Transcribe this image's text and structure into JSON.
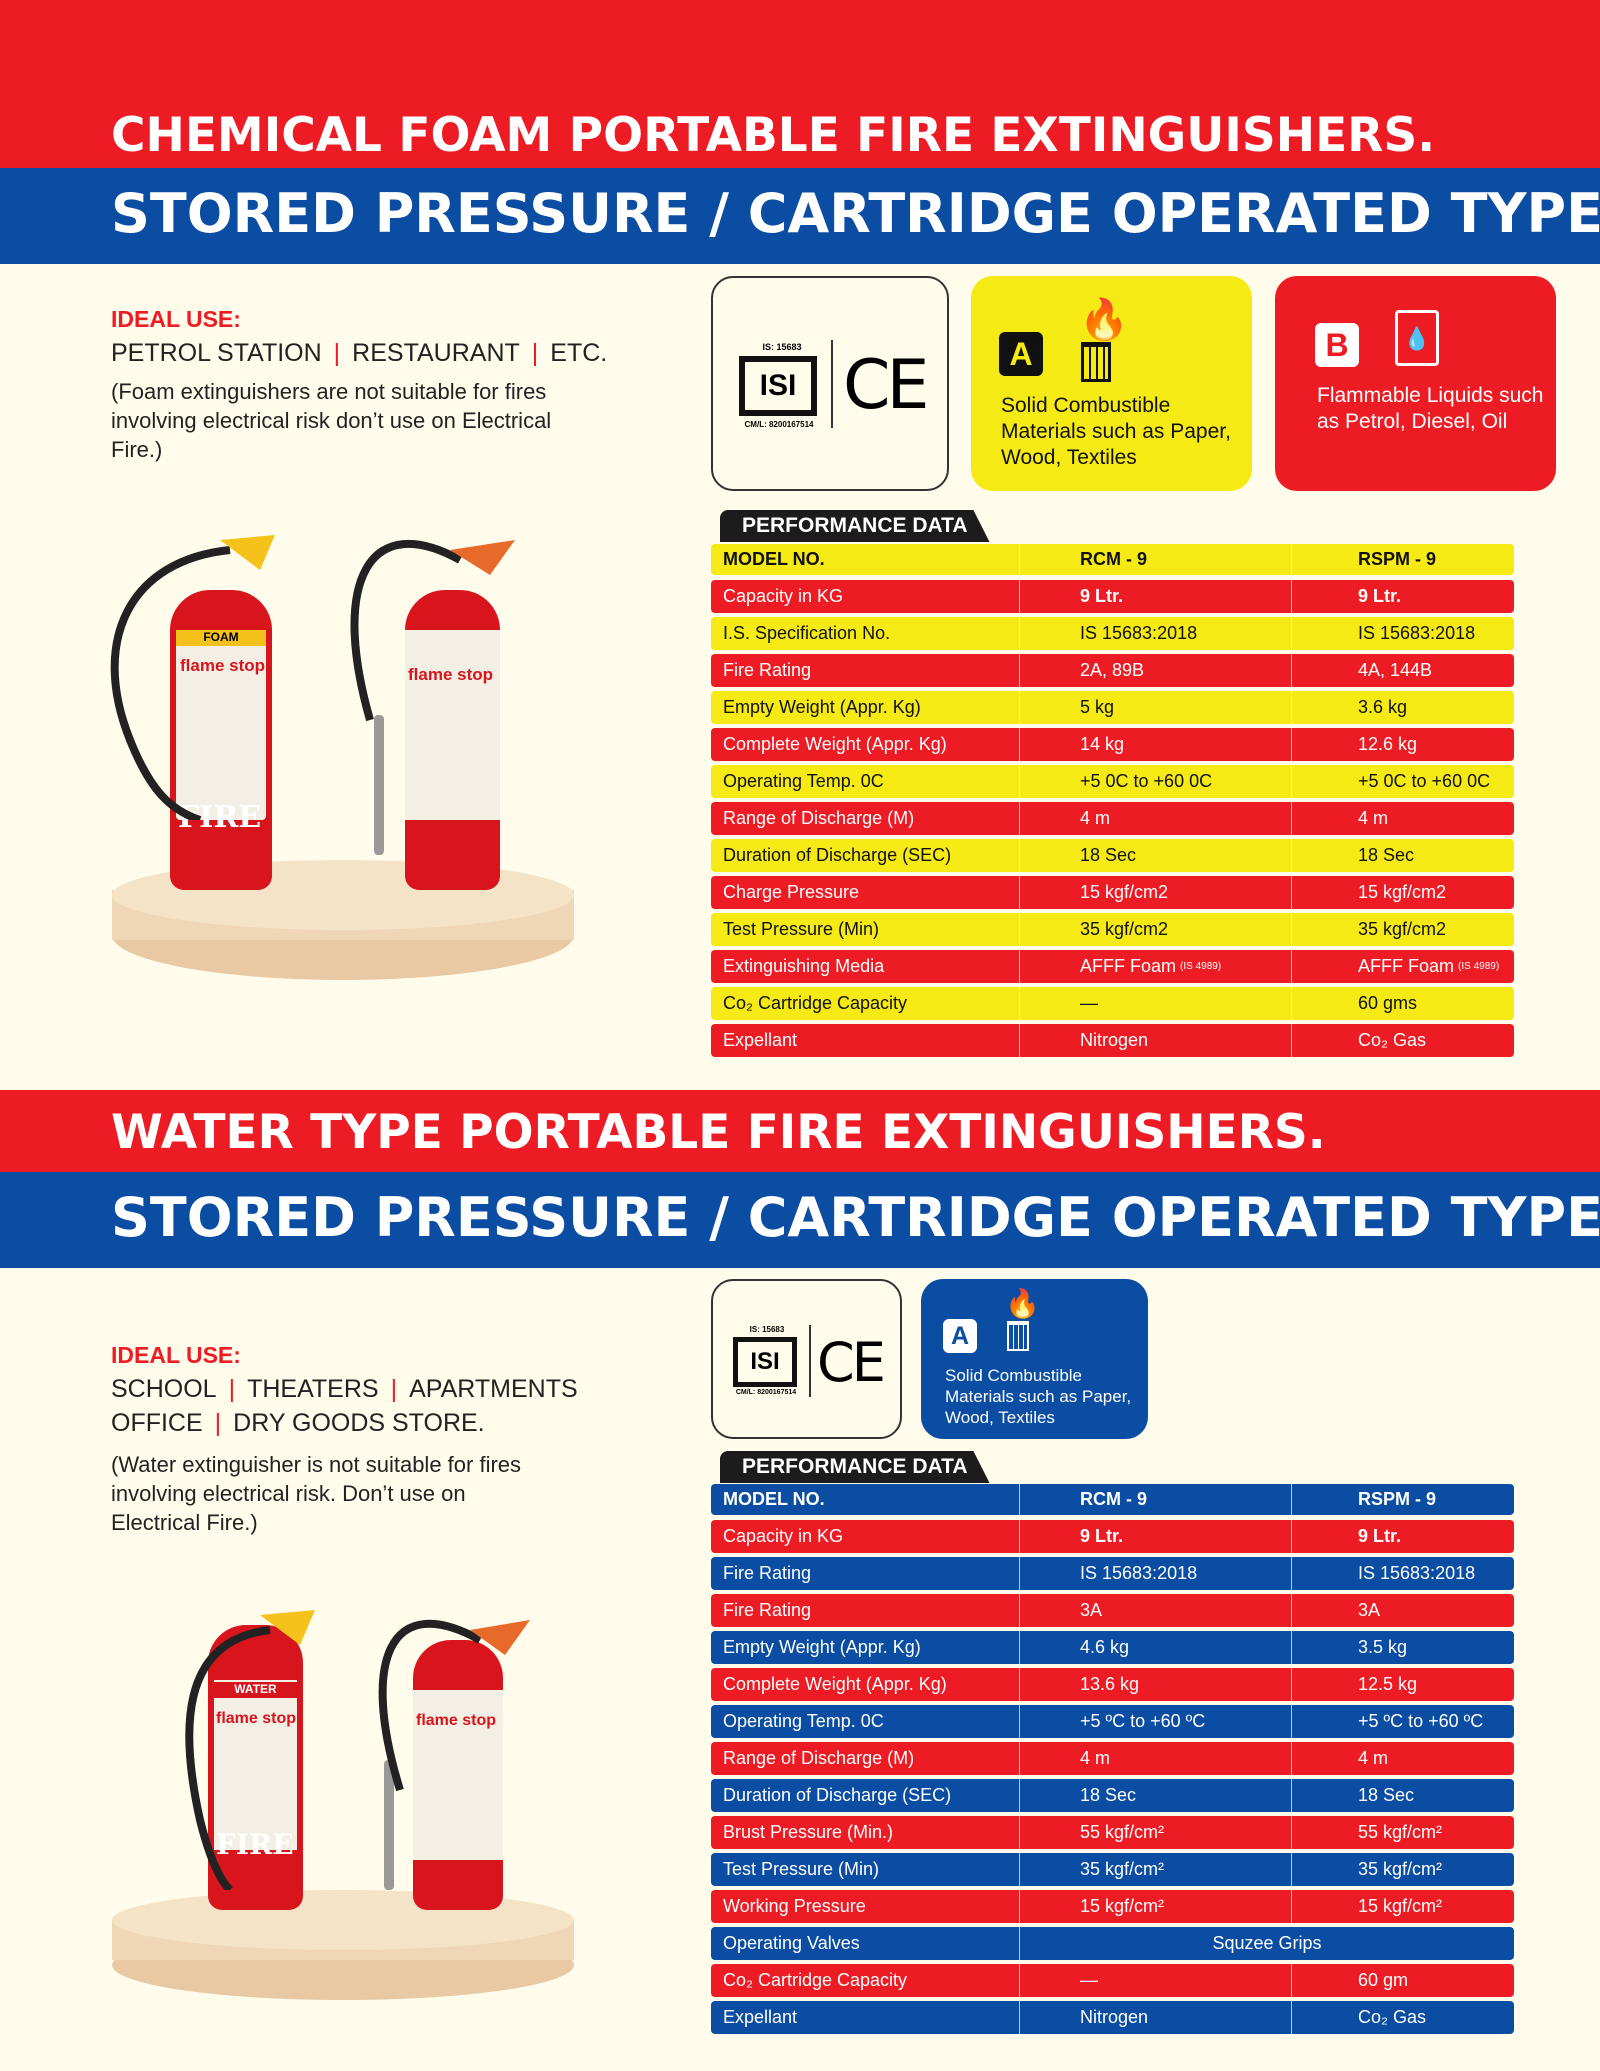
{
  "section1": {
    "title_top": "CHEMICAL FOAM PORTABLE FIRE EXTINGUISHERS.",
    "title_bottom": "STORED PRESSURE / CARTRIDGE OPERATED TYPE.",
    "ideal_label": "IDEAL USE:",
    "uses": [
      "PETROL STATION",
      "RESTAURANT",
      "ETC."
    ],
    "note": "(Foam extinguishers are not suitable for fires involving electrical risk don’t use on Electrical Fire.)",
    "cert": {
      "is": "IS: 15683",
      "cml": "CM/L: 8200167514",
      "ce": "CE",
      "isi": "ISI"
    },
    "class_a": {
      "letter": "A",
      "text": "Solid Combustible Materials such as Paper, Wood, Textiles"
    },
    "class_b": {
      "letter": "B",
      "text": "Flammable Liquids such as Petrol, Diesel, Oil"
    },
    "extinguisher_labels": {
      "type": "FOAM",
      "brand": "flame stop",
      "fire": "FIRE"
    },
    "perf_title": "PERFORMANCE DATA",
    "header": [
      "MODEL NO.",
      "RCM - 9",
      "RSPM - 9"
    ],
    "rows": [
      [
        "Capacity in KG",
        "9 Ltr.",
        "9 Ltr."
      ],
      [
        "I.S. Specification No.",
        "IS 15683:2018",
        "IS 15683:2018"
      ],
      [
        "Fire Rating",
        "2A, 89B",
        "4A, 144B"
      ],
      [
        "Empty Weight (Appr. Kg)",
        "5 kg",
        "3.6 kg"
      ],
      [
        "Complete Weight (Appr. Kg)",
        "14 kg",
        "12.6 kg"
      ],
      [
        "Operating Temp. 0C",
        "+5 0C to +60 0C",
        "+5 0C to +60 0C"
      ],
      [
        "Range of Discharge (M)",
        "4 m",
        "4 m"
      ],
      [
        "Duration of Discharge (SEC)",
        "18 Sec",
        "18 Sec"
      ],
      [
        "Charge Pressure",
        "15 kgf/cm2",
        "15 kgf/cm2"
      ],
      [
        "Test Pressure (Min)",
        "35 kgf/cm2",
        "35 kgf/cm2"
      ],
      [
        "Extinguishing Media",
        "AFFF Foam",
        "AFFF Foam"
      ],
      [
        " Co₂ Cartridge Capacity",
        "—",
        " 60 gms"
      ],
      [
        "Expellant",
        "Nitrogen",
        "Co₂ Gas"
      ]
    ],
    "media_note": "(IS 4989)"
  },
  "section2": {
    "title_top": "WATER TYPE PORTABLE FIRE EXTINGUISHERS.",
    "title_bottom": "STORED PRESSURE / CARTRIDGE OPERATED TYPE.",
    "ideal_label": "IDEAL USE:",
    "uses_line1": [
      "SCHOOL",
      "THEATERS",
      "APARTMENTS"
    ],
    "uses_line2": [
      "OFFICE",
      "DRY GOODS STORE."
    ],
    "note": "(Water extinguisher is not suitable for fires involving electrical risk. Don’t use on Electrical Fire.)",
    "cert": {
      "is": "IS: 15683",
      "cml": "CM/L: 8200167514",
      "ce": "CE",
      "isi": "ISI"
    },
    "class_a": {
      "letter": "A",
      "text": "Solid Combustible Materials such as Paper, Wood, Textiles"
    },
    "extinguisher_labels": {
      "type": "WATER",
      "brand": "flame stop",
      "fire": "FIRE"
    },
    "perf_title": "PERFORMANCE DATA",
    "header": [
      "MODEL NO.",
      "RCM - 9",
      "RSPM - 9"
    ],
    "rows": [
      [
        "Capacity in KG",
        "9 Ltr.",
        "9 Ltr."
      ],
      [
        "Fire Rating",
        "IS 15683:2018",
        "IS 15683:2018"
      ],
      [
        "Fire Rating",
        "3A",
        "3A"
      ],
      [
        "Empty Weight (Appr. Kg)",
        "4.6 kg",
        "3.5 kg"
      ],
      [
        "Complete Weight (Appr. Kg)",
        "13.6 kg",
        "12.5 kg"
      ],
      [
        "Operating Temp. 0C",
        "+5 ºC to +60 ºC",
        "+5 ºC to +60 ºC"
      ],
      [
        "Range of Discharge (M)",
        "4 m",
        "4 m"
      ],
      [
        "Duration of Discharge (SEC)",
        "18 Sec",
        "18 Sec"
      ],
      [
        "Brust Pressure (Min.)",
        "55 kgf/cm²",
        "55 kgf/cm²"
      ],
      [
        "Test Pressure (Min)",
        "35 kgf/cm²",
        "35 kgf/cm²"
      ],
      [
        "Working Pressure",
        "15 kgf/cm²",
        "15 kgf/cm²"
      ],
      [
        "Operating Valves",
        "Squzee Grips"
      ],
      [
        "Co₂ Cartridge Capacity",
        "—",
        "60 gm"
      ],
      [
        "Expellant",
        "Nitrogen",
        "Co₂ Gas"
      ]
    ]
  },
  "colors": {
    "red": "#ED1C24",
    "blue": "#0A4DA2",
    "yellow": "#F5EA14",
    "background": "#FFFCEB"
  }
}
